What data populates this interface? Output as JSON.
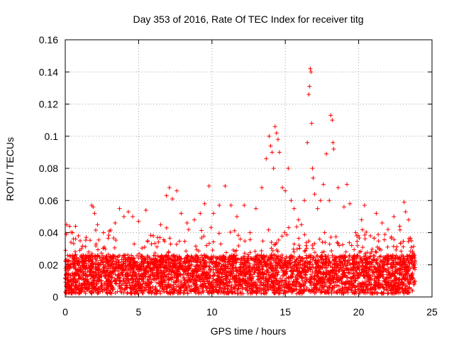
{
  "chart_data": {
    "type": "scatter",
    "title": "Day 353 of 2016, Rate Of TEC Index for receiver titg",
    "xlabel": "GPS time / hours",
    "ylabel": "ROTI / TECUs",
    "xlim": [
      0,
      25
    ],
    "ylim": [
      0,
      0.16
    ],
    "xticks": [
      0,
      5,
      10,
      15,
      20,
      25
    ],
    "yticks": [
      0,
      0.02,
      0.04,
      0.06,
      0.08,
      0.1,
      0.12,
      0.14,
      0.16
    ],
    "xtick_labels": [
      "0",
      "5",
      "10",
      "15",
      "20",
      "25"
    ],
    "ytick_labels": [
      "0",
      "0.02",
      "0.04",
      "0.06",
      "0.08",
      "0.1",
      "0.12",
      "0.14",
      "0.16"
    ],
    "grid": true,
    "marker": "+",
    "color": "#ff0000",
    "series": [
      {
        "name": "ROTI",
        "points": [
          [
            0.1,
            0.045
          ],
          [
            0.3,
            0.044
          ],
          [
            0.5,
            0.04
          ],
          [
            0.7,
            0.044
          ],
          [
            0.9,
            0.038
          ],
          [
            1.1,
            0.03
          ],
          [
            1.6,
            0.028
          ],
          [
            1.8,
            0.057
          ],
          [
            1.9,
            0.056
          ],
          [
            2.0,
            0.052
          ],
          [
            2.2,
            0.045
          ],
          [
            2.6,
            0.04
          ],
          [
            3.0,
            0.041
          ],
          [
            3.4,
            0.046
          ],
          [
            3.7,
            0.055
          ],
          [
            4.0,
            0.05
          ],
          [
            4.3,
            0.053
          ],
          [
            4.6,
            0.05
          ],
          [
            5.0,
            0.047
          ],
          [
            5.5,
            0.054
          ],
          [
            6.0,
            0.038
          ],
          [
            6.5,
            0.045
          ],
          [
            6.9,
            0.063
          ],
          [
            7.1,
            0.068
          ],
          [
            7.3,
            0.061
          ],
          [
            7.6,
            0.066
          ],
          [
            7.9,
            0.052
          ],
          [
            8.3,
            0.046
          ],
          [
            8.8,
            0.048
          ],
          [
            9.2,
            0.052
          ],
          [
            9.5,
            0.058
          ],
          [
            9.8,
            0.069
          ],
          [
            10.1,
            0.052
          ],
          [
            10.5,
            0.057
          ],
          [
            10.9,
            0.069
          ],
          [
            11.3,
            0.057
          ],
          [
            11.7,
            0.05
          ],
          [
            12.2,
            0.057
          ],
          [
            12.6,
            0.04
          ],
          [
            13.0,
            0.055
          ],
          [
            13.4,
            0.068
          ],
          [
            13.7,
            0.086
          ],
          [
            13.9,
            0.1
          ],
          [
            14.0,
            0.094
          ],
          [
            14.1,
            0.09
          ],
          [
            14.2,
            0.08
          ],
          [
            14.3,
            0.106
          ],
          [
            14.4,
            0.102
          ],
          [
            14.5,
            0.098
          ],
          [
            14.6,
            0.09
          ],
          [
            14.8,
            0.068
          ],
          [
            15.0,
            0.066
          ],
          [
            15.2,
            0.08
          ],
          [
            15.4,
            0.06
          ],
          [
            15.6,
            0.055
          ],
          [
            15.9,
            0.048
          ],
          [
            16.1,
            0.045
          ],
          [
            16.3,
            0.06
          ],
          [
            16.5,
            0.096
          ],
          [
            16.6,
            0.126
          ],
          [
            16.65,
            0.131
          ],
          [
            16.7,
            0.142
          ],
          [
            16.75,
            0.14
          ],
          [
            16.8,
            0.108
          ],
          [
            16.85,
            0.08
          ],
          [
            16.9,
            0.074
          ],
          [
            17.0,
            0.064
          ],
          [
            17.2,
            0.055
          ],
          [
            17.4,
            0.06
          ],
          [
            17.6,
            0.07
          ],
          [
            17.8,
            0.089
          ],
          [
            18.0,
            0.06
          ],
          [
            18.1,
            0.113
          ],
          [
            18.2,
            0.11
          ],
          [
            18.25,
            0.096
          ],
          [
            18.3,
            0.092
          ],
          [
            18.6,
            0.068
          ],
          [
            19.0,
            0.056
          ],
          [
            19.2,
            0.07
          ],
          [
            19.4,
            0.058
          ],
          [
            19.8,
            0.04
          ],
          [
            20.2,
            0.048
          ],
          [
            20.4,
            0.057
          ],
          [
            20.8,
            0.038
          ],
          [
            21.2,
            0.052
          ],
          [
            21.6,
            0.046
          ],
          [
            22.0,
            0.042
          ],
          [
            22.4,
            0.05
          ],
          [
            22.8,
            0.044
          ],
          [
            23.1,
            0.059
          ],
          [
            23.2,
            0.053
          ],
          [
            23.4,
            0.048
          ],
          [
            23.6,
            0.035
          ],
          [
            23.8,
            0.02
          ]
        ]
      }
    ]
  }
}
